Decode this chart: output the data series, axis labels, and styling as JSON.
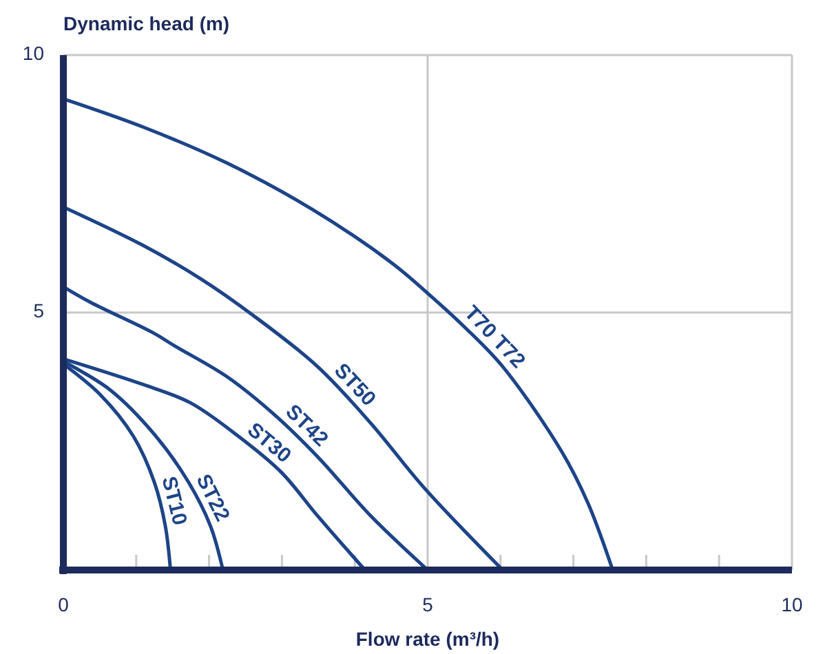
{
  "chart_data": {
    "type": "line",
    "xlabel": "Flow rate (m³/h)",
    "ylabel": "Dynamic head (m)",
    "xlim": [
      0,
      10
    ],
    "ylim": [
      0,
      10
    ],
    "xticks": [
      0,
      {
        "value": 1,
        "label": null
      },
      {
        "value": 2,
        "label": null
      },
      {
        "value": 3,
        "label": null
      },
      {
        "value": 4,
        "label": null
      },
      5,
      {
        "value": 6,
        "label": null
      },
      {
        "value": 7,
        "label": null
      },
      {
        "value": 8,
        "label": null
      },
      {
        "value": 9,
        "label": null
      },
      10
    ],
    "yticks": [
      5,
      10
    ],
    "grid": true,
    "marker": "none",
    "line_style": "solid",
    "series": [
      {
        "name": "ST10",
        "color": "#1d4488",
        "x": [
          0,
          0.51,
          0.96,
          1.25,
          1.4,
          1.47
        ],
        "values": [
          4.0,
          3.4,
          2.6,
          1.7,
          0.85,
          0
        ]
      },
      {
        "name": "ST22",
        "color": "#1d4488",
        "x": [
          0,
          0.64,
          1.27,
          1.72,
          2.02,
          2.19
        ],
        "values": [
          4.05,
          3.5,
          2.6,
          1.7,
          0.85,
          0
        ]
      },
      {
        "name": "ST30",
        "color": "#1d4488",
        "x": [
          0,
          1.1,
          1.74,
          2.4,
          2.99,
          3.49,
          4.14
        ],
        "values": [
          4.1,
          3.6,
          3.25,
          2.6,
          1.9,
          1.05,
          0
        ]
      },
      {
        "name": "ST42",
        "color": "#1d4488",
        "x": [
          0,
          0.37,
          1.24,
          1.53,
          2.25,
          2.91,
          3.49,
          4.22,
          5.0
        ],
        "values": [
          5.5,
          5.2,
          4.6,
          4.35,
          3.75,
          3.0,
          2.2,
          1.05,
          0
        ]
      },
      {
        "name": "ST50",
        "color": "#1d4488",
        "x": [
          0,
          1.1,
          1.89,
          2.6,
          3.49,
          4.22,
          4.95,
          6.03
        ],
        "values": [
          7.05,
          6.3,
          5.65,
          4.95,
          3.95,
          2.85,
          1.6,
          0
        ]
      },
      {
        "name": "T70 T72",
        "color": "#1d4488",
        "x": [
          0,
          1.1,
          2.25,
          3.42,
          4.52,
          5.02,
          5.52,
          6.03,
          6.84,
          7.2,
          7.54
        ],
        "values": [
          9.15,
          8.6,
          7.9,
          7.0,
          5.95,
          5.35,
          4.7,
          3.95,
          2.3,
          1.3,
          0
        ]
      }
    ]
  }
}
